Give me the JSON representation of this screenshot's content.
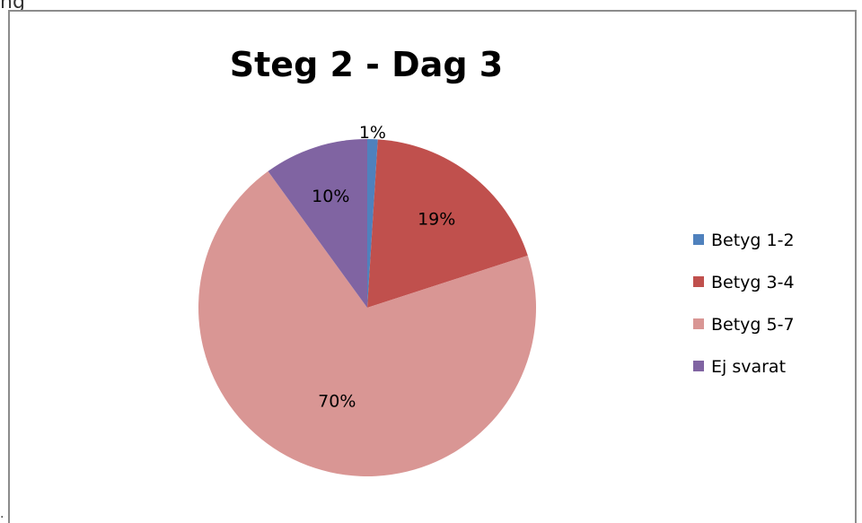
{
  "page": {
    "fragment_text": "ng",
    "stray_mark": "."
  },
  "chart_data": {
    "type": "pie",
    "title": "Steg 2 - Dag 3",
    "slices": [
      {
        "label": "Betyg 1-2",
        "value": 1,
        "display": "1%",
        "color": "#4f81bd"
      },
      {
        "label": "Betyg 3-4",
        "value": 19,
        "display": "19%",
        "color": "#c0504d"
      },
      {
        "label": "Betyg 5-7",
        "value": 70,
        "display": "70%",
        "color": "#d99694"
      },
      {
        "label": "Ej svarat",
        "value": 10,
        "display": "10%",
        "color": "#8064a2"
      }
    ],
    "legend_position": "right"
  }
}
